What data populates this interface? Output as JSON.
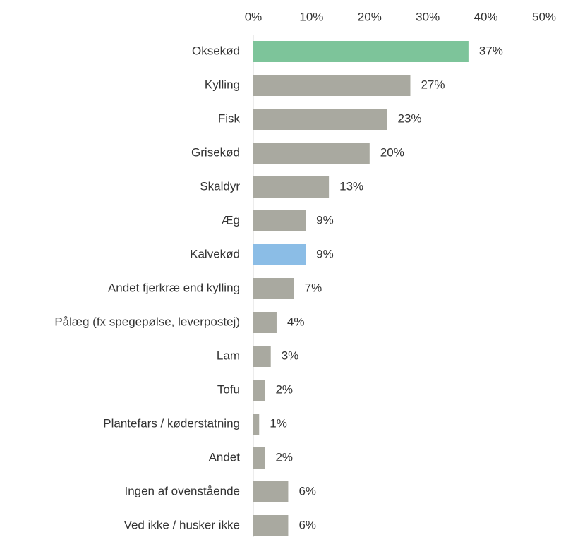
{
  "chart_data": {
    "type": "bar",
    "orientation": "horizontal",
    "categories": [
      "Oksekød",
      "Kylling",
      "Fisk",
      "Grisekød",
      "Skaldyr",
      "Æg",
      "Kalvekød",
      "Andet fjerkræ end kylling",
      "Pålæg (fx spegepølse, leverpostej)",
      "Lam",
      "Tofu",
      "Plantefars / køderstatning",
      "Andet",
      "Ingen af ovenstående",
      "Ved ikke / husker ikke"
    ],
    "values": [
      37,
      27,
      23,
      20,
      13,
      9,
      9,
      7,
      4,
      3,
      2,
      1,
      2,
      6,
      6
    ],
    "value_labels": [
      "37%",
      "27%",
      "23%",
      "20%",
      "13%",
      "9%",
      "9%",
      "7%",
      "4%",
      "3%",
      "2%",
      "1%",
      "2%",
      "6%",
      "6%"
    ],
    "colors": [
      "#7dc49a",
      "#a9a9a0",
      "#a9a9a0",
      "#a9a9a0",
      "#a9a9a0",
      "#a9a9a0",
      "#8bbde6",
      "#a9a9a0",
      "#a9a9a0",
      "#a9a9a0",
      "#a9a9a0",
      "#a9a9a0",
      "#a9a9a0",
      "#a9a9a0",
      "#a9a9a0"
    ],
    "xlim": [
      0,
      50
    ],
    "xticks": [
      {
        "value": 0,
        "label": "0%"
      },
      {
        "value": 10,
        "label": "10%"
      },
      {
        "value": 20,
        "label": "20%"
      },
      {
        "value": 30,
        "label": "30%"
      },
      {
        "value": 40,
        "label": "40%"
      },
      {
        "value": 50,
        "label": "50%"
      }
    ],
    "grid": false
  }
}
